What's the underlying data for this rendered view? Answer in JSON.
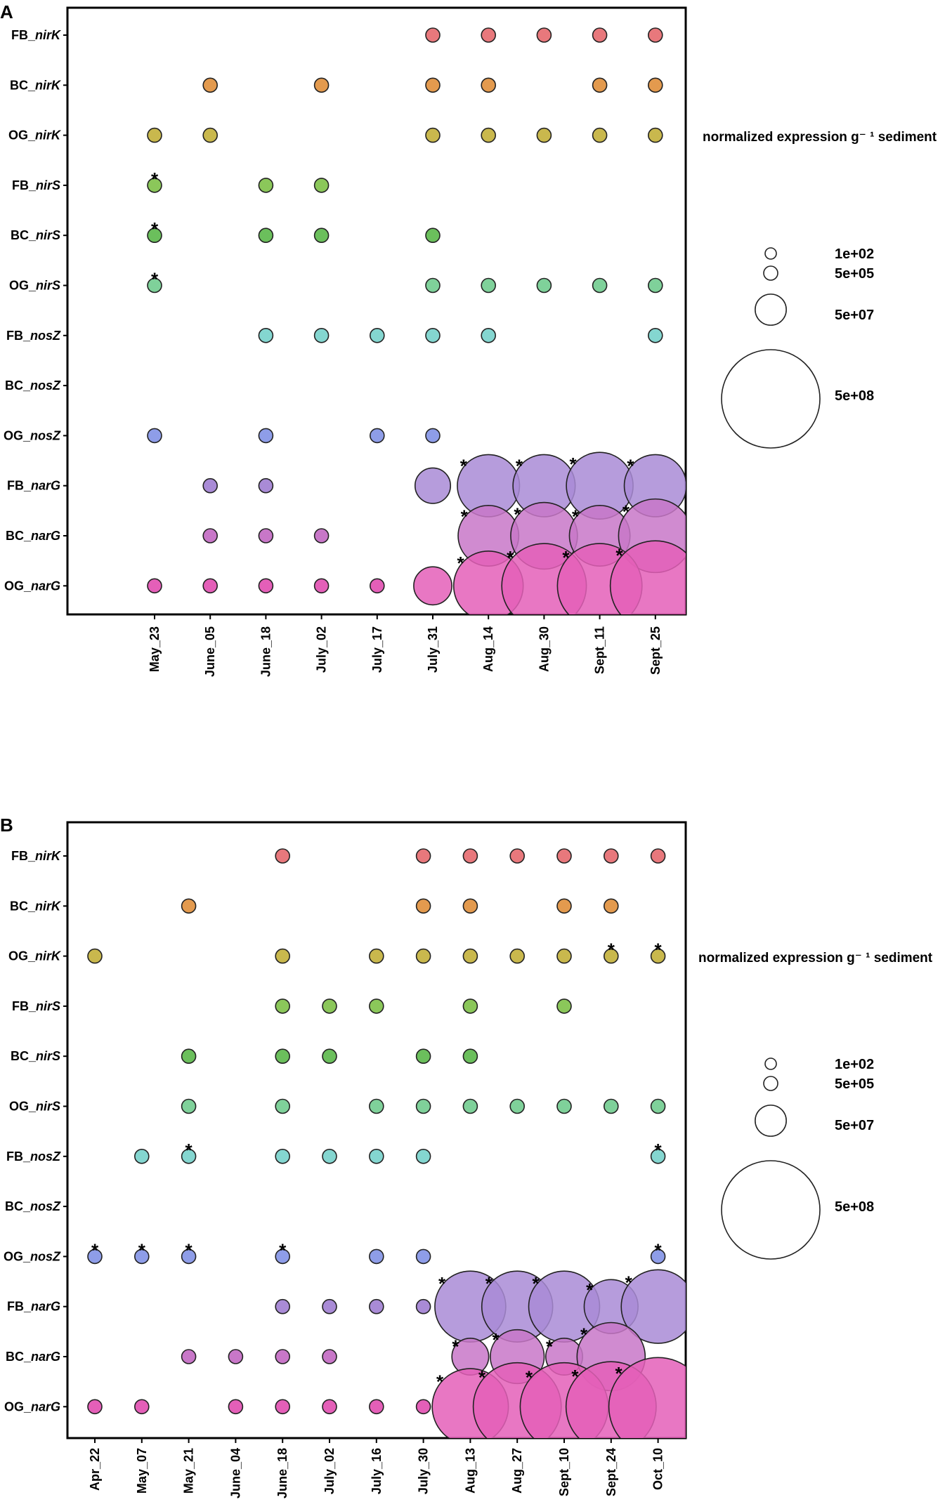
{
  "rows": [
    "FB_nirK",
    "BC_nirK",
    "OG_nirK",
    "FB_nirS",
    "BC_nirS",
    "OG_nirS",
    "FB_nosZ",
    "BC_nosZ",
    "OG_nosZ",
    "FB_narG",
    "BC_narG",
    "OG_narG"
  ],
  "row_parts": [
    [
      "FB_",
      "nirK"
    ],
    [
      "BC_",
      "nirK"
    ],
    [
      "OG_",
      "nirK"
    ],
    [
      "FB_",
      "nirS"
    ],
    [
      "BC_",
      "nirS"
    ],
    [
      "OG_",
      "nirS"
    ],
    [
      "FB_",
      "nosZ"
    ],
    [
      "BC_",
      "nosZ"
    ],
    [
      "OG_",
      "nosZ"
    ],
    [
      "FB_",
      "narG"
    ],
    [
      "BC_",
      "narG"
    ],
    [
      "OG_",
      "narG"
    ]
  ],
  "row_colors": [
    "#e8787c",
    "#e39a4e",
    "#c9b84d",
    "#8bc75a",
    "#6bbf5c",
    "#7fd19a",
    "#84d6d0",
    "#8fc0e8",
    "#8e9de8",
    "#a98bd6",
    "#c877c8",
    "#e45fb8"
  ],
  "legend": {
    "title": "normalized expression g⁻ ¹ sediment",
    "entries": [
      {
        "label": "1e+02",
        "value": 100
      },
      {
        "label": "5e+05",
        "value": 500000
      },
      {
        "label": "5e+07",
        "value": 50000000
      },
      {
        "label": "5e+08",
        "value": 500000000
      }
    ]
  },
  "chart_data": [
    {
      "panel": "A",
      "type": "scatter",
      "subtype": "bubble",
      "title": "",
      "xlabel": "",
      "ylabel": "",
      "columns": [
        "May_23",
        "June_05",
        "June_18",
        "July_02",
        "July_17",
        "July_31",
        "Aug_14",
        "Aug_30",
        "Sept_11",
        "Sept_25"
      ],
      "rows": [
        "FB_nirK",
        "BC_nirK",
        "OG_nirK",
        "FB_nirS",
        "BC_nirS",
        "OG_nirS",
        "FB_nosZ",
        "BC_nosZ",
        "OG_nosZ",
        "FB_narG",
        "BC_narG",
        "OG_narG"
      ],
      "size_unit": "normalized expression g-1 sediment",
      "points": [
        {
          "row": "FB_nirK",
          "col": "July_31",
          "value": 100000
        },
        {
          "row": "FB_nirK",
          "col": "Aug_14",
          "value": 100000
        },
        {
          "row": "FB_nirK",
          "col": "Aug_30",
          "value": 100000
        },
        {
          "row": "FB_nirK",
          "col": "Sept_11",
          "value": 100000
        },
        {
          "row": "FB_nirK",
          "col": "Sept_25",
          "value": 100000
        },
        {
          "row": "BC_nirK",
          "col": "June_05",
          "value": 100000
        },
        {
          "row": "BC_nirK",
          "col": "July_02",
          "value": 100000
        },
        {
          "row": "BC_nirK",
          "col": "July_31",
          "value": 100000
        },
        {
          "row": "BC_nirK",
          "col": "Aug_14",
          "value": 100000
        },
        {
          "row": "BC_nirK",
          "col": "Sept_11",
          "value": 100000
        },
        {
          "row": "BC_nirK",
          "col": "Sept_25",
          "value": 100000
        },
        {
          "row": "OG_nirK",
          "col": "May_23",
          "value": 500000
        },
        {
          "row": "OG_nirK",
          "col": "June_05",
          "value": 100000
        },
        {
          "row": "OG_nirK",
          "col": "July_31",
          "value": 100000
        },
        {
          "row": "OG_nirK",
          "col": "Aug_14",
          "value": 100000
        },
        {
          "row": "OG_nirK",
          "col": "Aug_30",
          "value": 100000
        },
        {
          "row": "OG_nirK",
          "col": "Sept_11",
          "value": 100000
        },
        {
          "row": "OG_nirK",
          "col": "Sept_25",
          "value": 100000
        },
        {
          "row": "FB_nirS",
          "col": "May_23",
          "value": 100000,
          "star": true
        },
        {
          "row": "FB_nirS",
          "col": "June_18",
          "value": 100000
        },
        {
          "row": "FB_nirS",
          "col": "July_02",
          "value": 100000
        },
        {
          "row": "BC_nirS",
          "col": "May_23",
          "value": 100000,
          "star": true
        },
        {
          "row": "BC_nirS",
          "col": "June_18",
          "value": 100000
        },
        {
          "row": "BC_nirS",
          "col": "July_02",
          "value": 100000
        },
        {
          "row": "BC_nirS",
          "col": "July_31",
          "value": 100000
        },
        {
          "row": "OG_nirS",
          "col": "May_23",
          "value": 100000,
          "star": true
        },
        {
          "row": "OG_nirS",
          "col": "July_31",
          "value": 100000
        },
        {
          "row": "OG_nirS",
          "col": "Aug_14",
          "value": 100000
        },
        {
          "row": "OG_nirS",
          "col": "Aug_30",
          "value": 100000
        },
        {
          "row": "OG_nirS",
          "col": "Sept_11",
          "value": 100000
        },
        {
          "row": "OG_nirS",
          "col": "Sept_25",
          "value": 100000
        },
        {
          "row": "FB_nosZ",
          "col": "June_18",
          "value": 100000
        },
        {
          "row": "FB_nosZ",
          "col": "July_02",
          "value": 100000
        },
        {
          "row": "FB_nosZ",
          "col": "July_17",
          "value": 100000
        },
        {
          "row": "FB_nosZ",
          "col": "July_31",
          "value": 100000
        },
        {
          "row": "FB_nosZ",
          "col": "Aug_14",
          "value": 100000
        },
        {
          "row": "FB_nosZ",
          "col": "Sept_25",
          "value": 100000
        },
        {
          "row": "OG_nosZ",
          "col": "May_23",
          "value": 100000
        },
        {
          "row": "OG_nosZ",
          "col": "June_18",
          "value": 100000
        },
        {
          "row": "OG_nosZ",
          "col": "July_17",
          "value": 100000
        },
        {
          "row": "OG_nosZ",
          "col": "July_31",
          "value": 100000
        },
        {
          "row": "FB_narG",
          "col": "June_05",
          "value": 100000
        },
        {
          "row": "FB_narG",
          "col": "June_18",
          "value": 100000
        },
        {
          "row": "FB_narG",
          "col": "July_31",
          "value": 65000000
        },
        {
          "row": "FB_narG",
          "col": "Aug_14",
          "value": 200000000,
          "star": true
        },
        {
          "row": "FB_narG",
          "col": "Aug_30",
          "value": 200000000,
          "star": true
        },
        {
          "row": "FB_narG",
          "col": "Sept_11",
          "value": 230000000,
          "star": true
        },
        {
          "row": "FB_narG",
          "col": "Sept_25",
          "value": 200000000,
          "star": true
        },
        {
          "row": "BC_narG",
          "col": "June_05",
          "value": 100000
        },
        {
          "row": "BC_narG",
          "col": "June_18",
          "value": 100000
        },
        {
          "row": "BC_narG",
          "col": "July_02",
          "value": 100000
        },
        {
          "row": "BC_narG",
          "col": "Aug_14",
          "value": 190000000,
          "star": true
        },
        {
          "row": "BC_narG",
          "col": "Aug_30",
          "value": 230000000,
          "star": true
        },
        {
          "row": "BC_narG",
          "col": "Sept_11",
          "value": 190000000,
          "star": true
        },
        {
          "row": "BC_narG",
          "col": "Sept_25",
          "value": 280000000,
          "star": true
        },
        {
          "row": "OG_narG",
          "col": "May_23",
          "value": 100000
        },
        {
          "row": "OG_narG",
          "col": "June_05",
          "value": 100000
        },
        {
          "row": "OG_narG",
          "col": "June_18",
          "value": 100000
        },
        {
          "row": "OG_narG",
          "col": "July_02",
          "value": 100000
        },
        {
          "row": "OG_narG",
          "col": "July_17",
          "value": 500000
        },
        {
          "row": "OG_narG",
          "col": "July_31",
          "value": 75000000
        },
        {
          "row": "OG_narG",
          "col": "Aug_14",
          "value": 250000000,
          "star": true
        },
        {
          "row": "OG_narG",
          "col": "Aug_30",
          "value": 370000000,
          "star": true
        },
        {
          "row": "OG_narG",
          "col": "Sept_11",
          "value": 370000000,
          "star": true
        },
        {
          "row": "OG_narG",
          "col": "Sept_25",
          "value": 420000000,
          "star": true
        }
      ]
    },
    {
      "panel": "B",
      "type": "scatter",
      "subtype": "bubble",
      "title": "",
      "xlabel": "",
      "ylabel": "",
      "columns": [
        "Apr_22",
        "May_07",
        "May_21",
        "June_04",
        "June_18",
        "July_02",
        "July_16",
        "July_30",
        "Aug_13",
        "Aug_27",
        "Sept_10",
        "Sept_24",
        "Oct_10"
      ],
      "rows": [
        "FB_nirK",
        "BC_nirK",
        "OG_nirK",
        "FB_nirS",
        "BC_nirS",
        "OG_nirS",
        "FB_nosZ",
        "BC_nosZ",
        "OG_nosZ",
        "FB_narG",
        "BC_narG",
        "OG_narG"
      ],
      "size_unit": "normalized expression g-1 sediment",
      "points": [
        {
          "row": "FB_nirK",
          "col": "June_18",
          "value": 100000
        },
        {
          "row": "FB_nirK",
          "col": "July_30",
          "value": 100000
        },
        {
          "row": "FB_nirK",
          "col": "Aug_13",
          "value": 100000
        },
        {
          "row": "FB_nirK",
          "col": "Aug_27",
          "value": 100000
        },
        {
          "row": "FB_nirK",
          "col": "Sept_10",
          "value": 100000
        },
        {
          "row": "FB_nirK",
          "col": "Sept_24",
          "value": 100000
        },
        {
          "row": "FB_nirK",
          "col": "Oct_10",
          "value": 100000
        },
        {
          "row": "BC_nirK",
          "col": "May_21",
          "value": 100000
        },
        {
          "row": "BC_nirK",
          "col": "July_30",
          "value": 100000
        },
        {
          "row": "BC_nirK",
          "col": "Aug_13",
          "value": 100000
        },
        {
          "row": "BC_nirK",
          "col": "Sept_10",
          "value": 100000
        },
        {
          "row": "BC_nirK",
          "col": "Sept_24",
          "value": 100000
        },
        {
          "row": "OG_nirK",
          "col": "Apr_22",
          "value": 100000
        },
        {
          "row": "OG_nirK",
          "col": "June_18",
          "value": 100000
        },
        {
          "row": "OG_nirK",
          "col": "July_16",
          "value": 100000
        },
        {
          "row": "OG_nirK",
          "col": "July_30",
          "value": 100000
        },
        {
          "row": "OG_nirK",
          "col": "Aug_13",
          "value": 100000
        },
        {
          "row": "OG_nirK",
          "col": "Aug_27",
          "value": 100000
        },
        {
          "row": "OG_nirK",
          "col": "Sept_10",
          "value": 100000
        },
        {
          "row": "OG_nirK",
          "col": "Sept_24",
          "value": 100000,
          "star": true
        },
        {
          "row": "OG_nirK",
          "col": "Oct_10",
          "value": 100000,
          "star": true
        },
        {
          "row": "FB_nirS",
          "col": "June_18",
          "value": 100000
        },
        {
          "row": "FB_nirS",
          "col": "July_02",
          "value": 100000
        },
        {
          "row": "FB_nirS",
          "col": "July_16",
          "value": 100000
        },
        {
          "row": "FB_nirS",
          "col": "Aug_13",
          "value": 100000
        },
        {
          "row": "FB_nirS",
          "col": "Sept_10",
          "value": 100000
        },
        {
          "row": "BC_nirS",
          "col": "May_21",
          "value": 100000
        },
        {
          "row": "BC_nirS",
          "col": "June_18",
          "value": 100000
        },
        {
          "row": "BC_nirS",
          "col": "July_02",
          "value": 100000
        },
        {
          "row": "BC_nirS",
          "col": "July_30",
          "value": 100000
        },
        {
          "row": "BC_nirS",
          "col": "Aug_13",
          "value": 100000
        },
        {
          "row": "OG_nirS",
          "col": "May_21",
          "value": 100000
        },
        {
          "row": "OG_nirS",
          "col": "June_18",
          "value": 100000
        },
        {
          "row": "OG_nirS",
          "col": "July_16",
          "value": 100000
        },
        {
          "row": "OG_nirS",
          "col": "July_30",
          "value": 100000
        },
        {
          "row": "OG_nirS",
          "col": "Aug_13",
          "value": 100000
        },
        {
          "row": "OG_nirS",
          "col": "Aug_27",
          "value": 100000
        },
        {
          "row": "OG_nirS",
          "col": "Sept_10",
          "value": 100000
        },
        {
          "row": "OG_nirS",
          "col": "Sept_24",
          "value": 100000
        },
        {
          "row": "OG_nirS",
          "col": "Oct_10",
          "value": 100000
        },
        {
          "row": "FB_nosZ",
          "col": "May_07",
          "value": 100000
        },
        {
          "row": "FB_nosZ",
          "col": "May_21",
          "value": 100000,
          "star": true
        },
        {
          "row": "FB_nosZ",
          "col": "June_18",
          "value": 100000
        },
        {
          "row": "FB_nosZ",
          "col": "July_02",
          "value": 100000
        },
        {
          "row": "FB_nosZ",
          "col": "July_16",
          "value": 100000
        },
        {
          "row": "FB_nosZ",
          "col": "July_30",
          "value": 100000
        },
        {
          "row": "FB_nosZ",
          "col": "Oct_10",
          "value": 100000,
          "star": true
        },
        {
          "row": "OG_nosZ",
          "col": "Apr_22",
          "value": 100000,
          "star": true
        },
        {
          "row": "OG_nosZ",
          "col": "May_07",
          "value": 100000,
          "star": true
        },
        {
          "row": "OG_nosZ",
          "col": "May_21",
          "value": 100000,
          "star": true
        },
        {
          "row": "OG_nosZ",
          "col": "June_18",
          "value": 100000,
          "star": true
        },
        {
          "row": "OG_nosZ",
          "col": "July_16",
          "value": 100000
        },
        {
          "row": "OG_nosZ",
          "col": "July_30",
          "value": 100000
        },
        {
          "row": "OG_nosZ",
          "col": "Oct_10",
          "value": 100000,
          "star": true
        },
        {
          "row": "FB_narG",
          "col": "June_18",
          "value": 100000
        },
        {
          "row": "FB_narG",
          "col": "July_02",
          "value": 100000
        },
        {
          "row": "FB_narG",
          "col": "July_16",
          "value": 100000
        },
        {
          "row": "FB_narG",
          "col": "July_30",
          "value": 100000
        },
        {
          "row": "FB_narG",
          "col": "Aug_13",
          "value": 260000000,
          "star": true
        },
        {
          "row": "FB_narG",
          "col": "Aug_27",
          "value": 260000000,
          "star": true
        },
        {
          "row": "FB_narG",
          "col": "Sept_10",
          "value": 260000000,
          "star": true
        },
        {
          "row": "FB_narG",
          "col": "Sept_24",
          "value": 150000000,
          "star": true
        },
        {
          "row": "FB_narG",
          "col": "Oct_10",
          "value": 280000000,
          "star": true
        },
        {
          "row": "BC_narG",
          "col": "May_21",
          "value": 100000
        },
        {
          "row": "BC_narG",
          "col": "June_04",
          "value": 100000
        },
        {
          "row": "BC_narG",
          "col": "June_18",
          "value": 100000
        },
        {
          "row": "BC_narG",
          "col": "July_02",
          "value": 100000
        },
        {
          "row": "BC_narG",
          "col": "Aug_13",
          "value": 70000000,
          "star": true
        },
        {
          "row": "BC_narG",
          "col": "Aug_27",
          "value": 150000000,
          "star": true
        },
        {
          "row": "BC_narG",
          "col": "Sept_10",
          "value": 70000000,
          "star": true
        },
        {
          "row": "BC_narG",
          "col": "Sept_24",
          "value": 240000000,
          "star": true
        },
        {
          "row": "OG_narG",
          "col": "Apr_22",
          "value": 100000
        },
        {
          "row": "OG_narG",
          "col": "May_07",
          "value": 100000
        },
        {
          "row": "OG_narG",
          "col": "June_04",
          "value": 100000
        },
        {
          "row": "OG_narG",
          "col": "June_18",
          "value": 100000
        },
        {
          "row": "OG_narG",
          "col": "July_02",
          "value": 100000
        },
        {
          "row": "OG_narG",
          "col": "July_16",
          "value": 100000
        },
        {
          "row": "OG_narG",
          "col": "July_30",
          "value": 100000
        },
        {
          "row": "OG_narG",
          "col": "Aug_13",
          "value": 300000000,
          "star": true
        },
        {
          "row": "OG_narG",
          "col": "Aug_27",
          "value": 400000000,
          "star": true
        },
        {
          "row": "OG_narG",
          "col": "Sept_10",
          "value": 400000000,
          "star": true
        },
        {
          "row": "OG_narG",
          "col": "Sept_24",
          "value": 420000000,
          "star": true
        },
        {
          "row": "OG_narG",
          "col": "Oct_10",
          "value": 500000000,
          "star": true
        }
      ]
    }
  ]
}
